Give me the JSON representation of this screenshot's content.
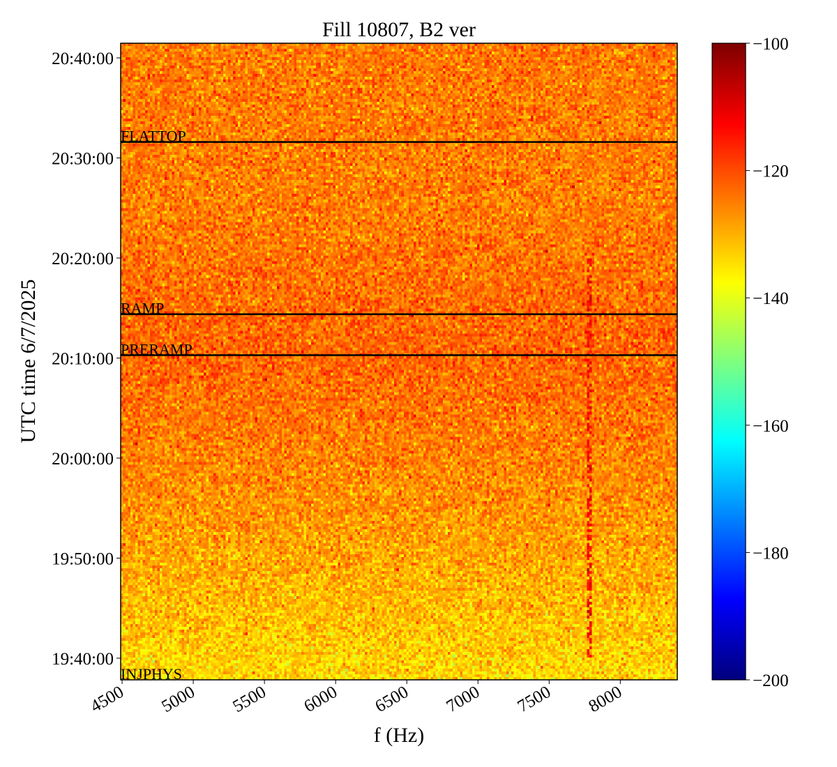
{
  "chart_data": {
    "type": "heatmap",
    "title": "Fill 10807, B2 ver",
    "xlabel": "f (Hz)",
    "ylabel": "UTC time 6/7/2025",
    "xlim": [
      4490,
      8400
    ],
    "ylim": [
      "19:37:50",
      "20:41:28"
    ],
    "x_ticks": [
      "4500",
      "5000",
      "5500",
      "6000",
      "6500",
      "7000",
      "7500",
      "8000"
    ],
    "y_ticks": [
      "19:40:00",
      "19:50:00",
      "20:00:00",
      "20:10:00",
      "20:20:00",
      "20:30:00",
      "20:40:00"
    ],
    "colormap": "jet",
    "color_range": [
      -200,
      -100
    ],
    "colorbar_ticks": [
      "−100",
      "−120",
      "−140",
      "−160",
      "−180",
      "−200"
    ],
    "mean_level_profile": [
      {
        "time": "19:37:50",
        "value": -134
      },
      {
        "time": "19:45:00",
        "value": -131
      },
      {
        "time": "19:55:00",
        "value": -127
      },
      {
        "time": "20:05:00",
        "value": -124
      },
      {
        "time": "20:10:17",
        "value": -122.5
      },
      {
        "time": "20:14:23",
        "value": -123
      },
      {
        "time": "20:25:00",
        "value": -125
      },
      {
        "time": "20:41:28",
        "value": -124.5
      }
    ],
    "noise_std_db": 4,
    "spectral_line": {
      "freq_hz": 7775,
      "time_range": [
        "19:40:00",
        "20:20:00"
      ],
      "peak_value": -113
    },
    "events": [
      {
        "label": "FLATTOP",
        "time": "20:31:36"
      },
      {
        "label": "RAMP",
        "time": "20:14:23"
      },
      {
        "label": "PRERAMP",
        "time": "20:10:17"
      },
      {
        "label": "INJPHYS",
        "time": "19:37:50"
      }
    ]
  }
}
